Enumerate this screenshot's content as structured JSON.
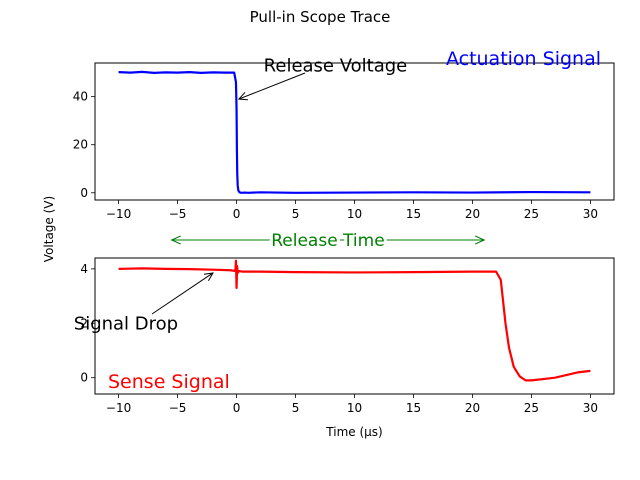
{
  "figure": {
    "title": "Pull-in Scope Trace",
    "shared_ylabel": "Voltage (V)"
  },
  "chart_data": [
    {
      "type": "line",
      "panel": "top",
      "xlim": [
        -12,
        32
      ],
      "ylim": [
        -3,
        54
      ],
      "xticks": [
        -10,
        -5,
        0,
        5,
        10,
        15,
        20,
        25,
        30
      ],
      "yticks": [
        0,
        20,
        40
      ],
      "xlabel": "",
      "ylabel": "",
      "grid": false,
      "series": [
        {
          "name": "Actuation Signal",
          "color": "#0000ff",
          "x": [
            -10,
            -9,
            -8,
            -7,
            -6,
            -5,
            -4,
            -3,
            -2,
            -1,
            -0.2,
            -0.05,
            0,
            0.03,
            0.06,
            0.1,
            0.15,
            0.25,
            0.4,
            0.7,
            1,
            2,
            5,
            10,
            15,
            20,
            25,
            30
          ],
          "y": [
            50.2,
            50.0,
            50.3,
            49.9,
            50.1,
            50.0,
            50.2,
            49.9,
            50.1,
            50.0,
            50.0,
            46,
            35,
            18,
            8,
            3,
            1,
            0.2,
            0,
            0.1,
            0,
            0.2,
            0,
            0.1,
            0.2,
            0.1,
            0.3,
            0.2
          ]
        }
      ],
      "annotations": [
        {
          "text": "Release Voltage",
          "xy": [
            0.2,
            39
          ],
          "xytext": [
            2.3,
            53
          ]
        },
        {
          "text": "Actuation Signal",
          "color": "#0000ff",
          "position": "top-right"
        }
      ]
    },
    {
      "type": "line",
      "panel": "bottom",
      "xlim": [
        -12,
        32
      ],
      "ylim": [
        -0.6,
        4.4
      ],
      "xticks": [
        -10,
        -5,
        0,
        5,
        10,
        15,
        20,
        25,
        30
      ],
      "yticks": [
        0,
        2,
        4
      ],
      "xlabel": "Time (μs)",
      "ylabel": "",
      "grid": false,
      "series": [
        {
          "name": "Sense Signal",
          "color": "#ff0000",
          "x": [
            -10,
            -8,
            -6,
            -4,
            -2,
            -0.5,
            -0.1,
            -0.05,
            0,
            0.05,
            0.1,
            0.2,
            0.5,
            2,
            5,
            10,
            15,
            20,
            22,
            22.4,
            22.6,
            22.8,
            23.1,
            23.5,
            24,
            24.5,
            25,
            26,
            27,
            28,
            29,
            30
          ],
          "y": [
            4.0,
            4.02,
            4.0,
            3.99,
            3.97,
            3.95,
            3.92,
            4.3,
            3.3,
            4.1,
            3.85,
            3.92,
            3.9,
            3.9,
            3.88,
            3.87,
            3.88,
            3.9,
            3.9,
            3.6,
            2.8,
            2.0,
            1.1,
            0.4,
            0.05,
            -0.1,
            -0.1,
            -0.05,
            0.0,
            0.1,
            0.2,
            0.25
          ]
        }
      ],
      "annotations": [
        {
          "text": "Signal Drop",
          "xy": [
            -2,
            3.85
          ],
          "xytext": [
            -13.8,
            2.0
          ]
        },
        {
          "text": "Sense Signal",
          "color": "#ff0000",
          "position": "bottom-left"
        }
      ]
    }
  ],
  "release_time": {
    "label": "Release Time",
    "color": "#008000",
    "x_start": -5.5,
    "x_end": 21
  }
}
